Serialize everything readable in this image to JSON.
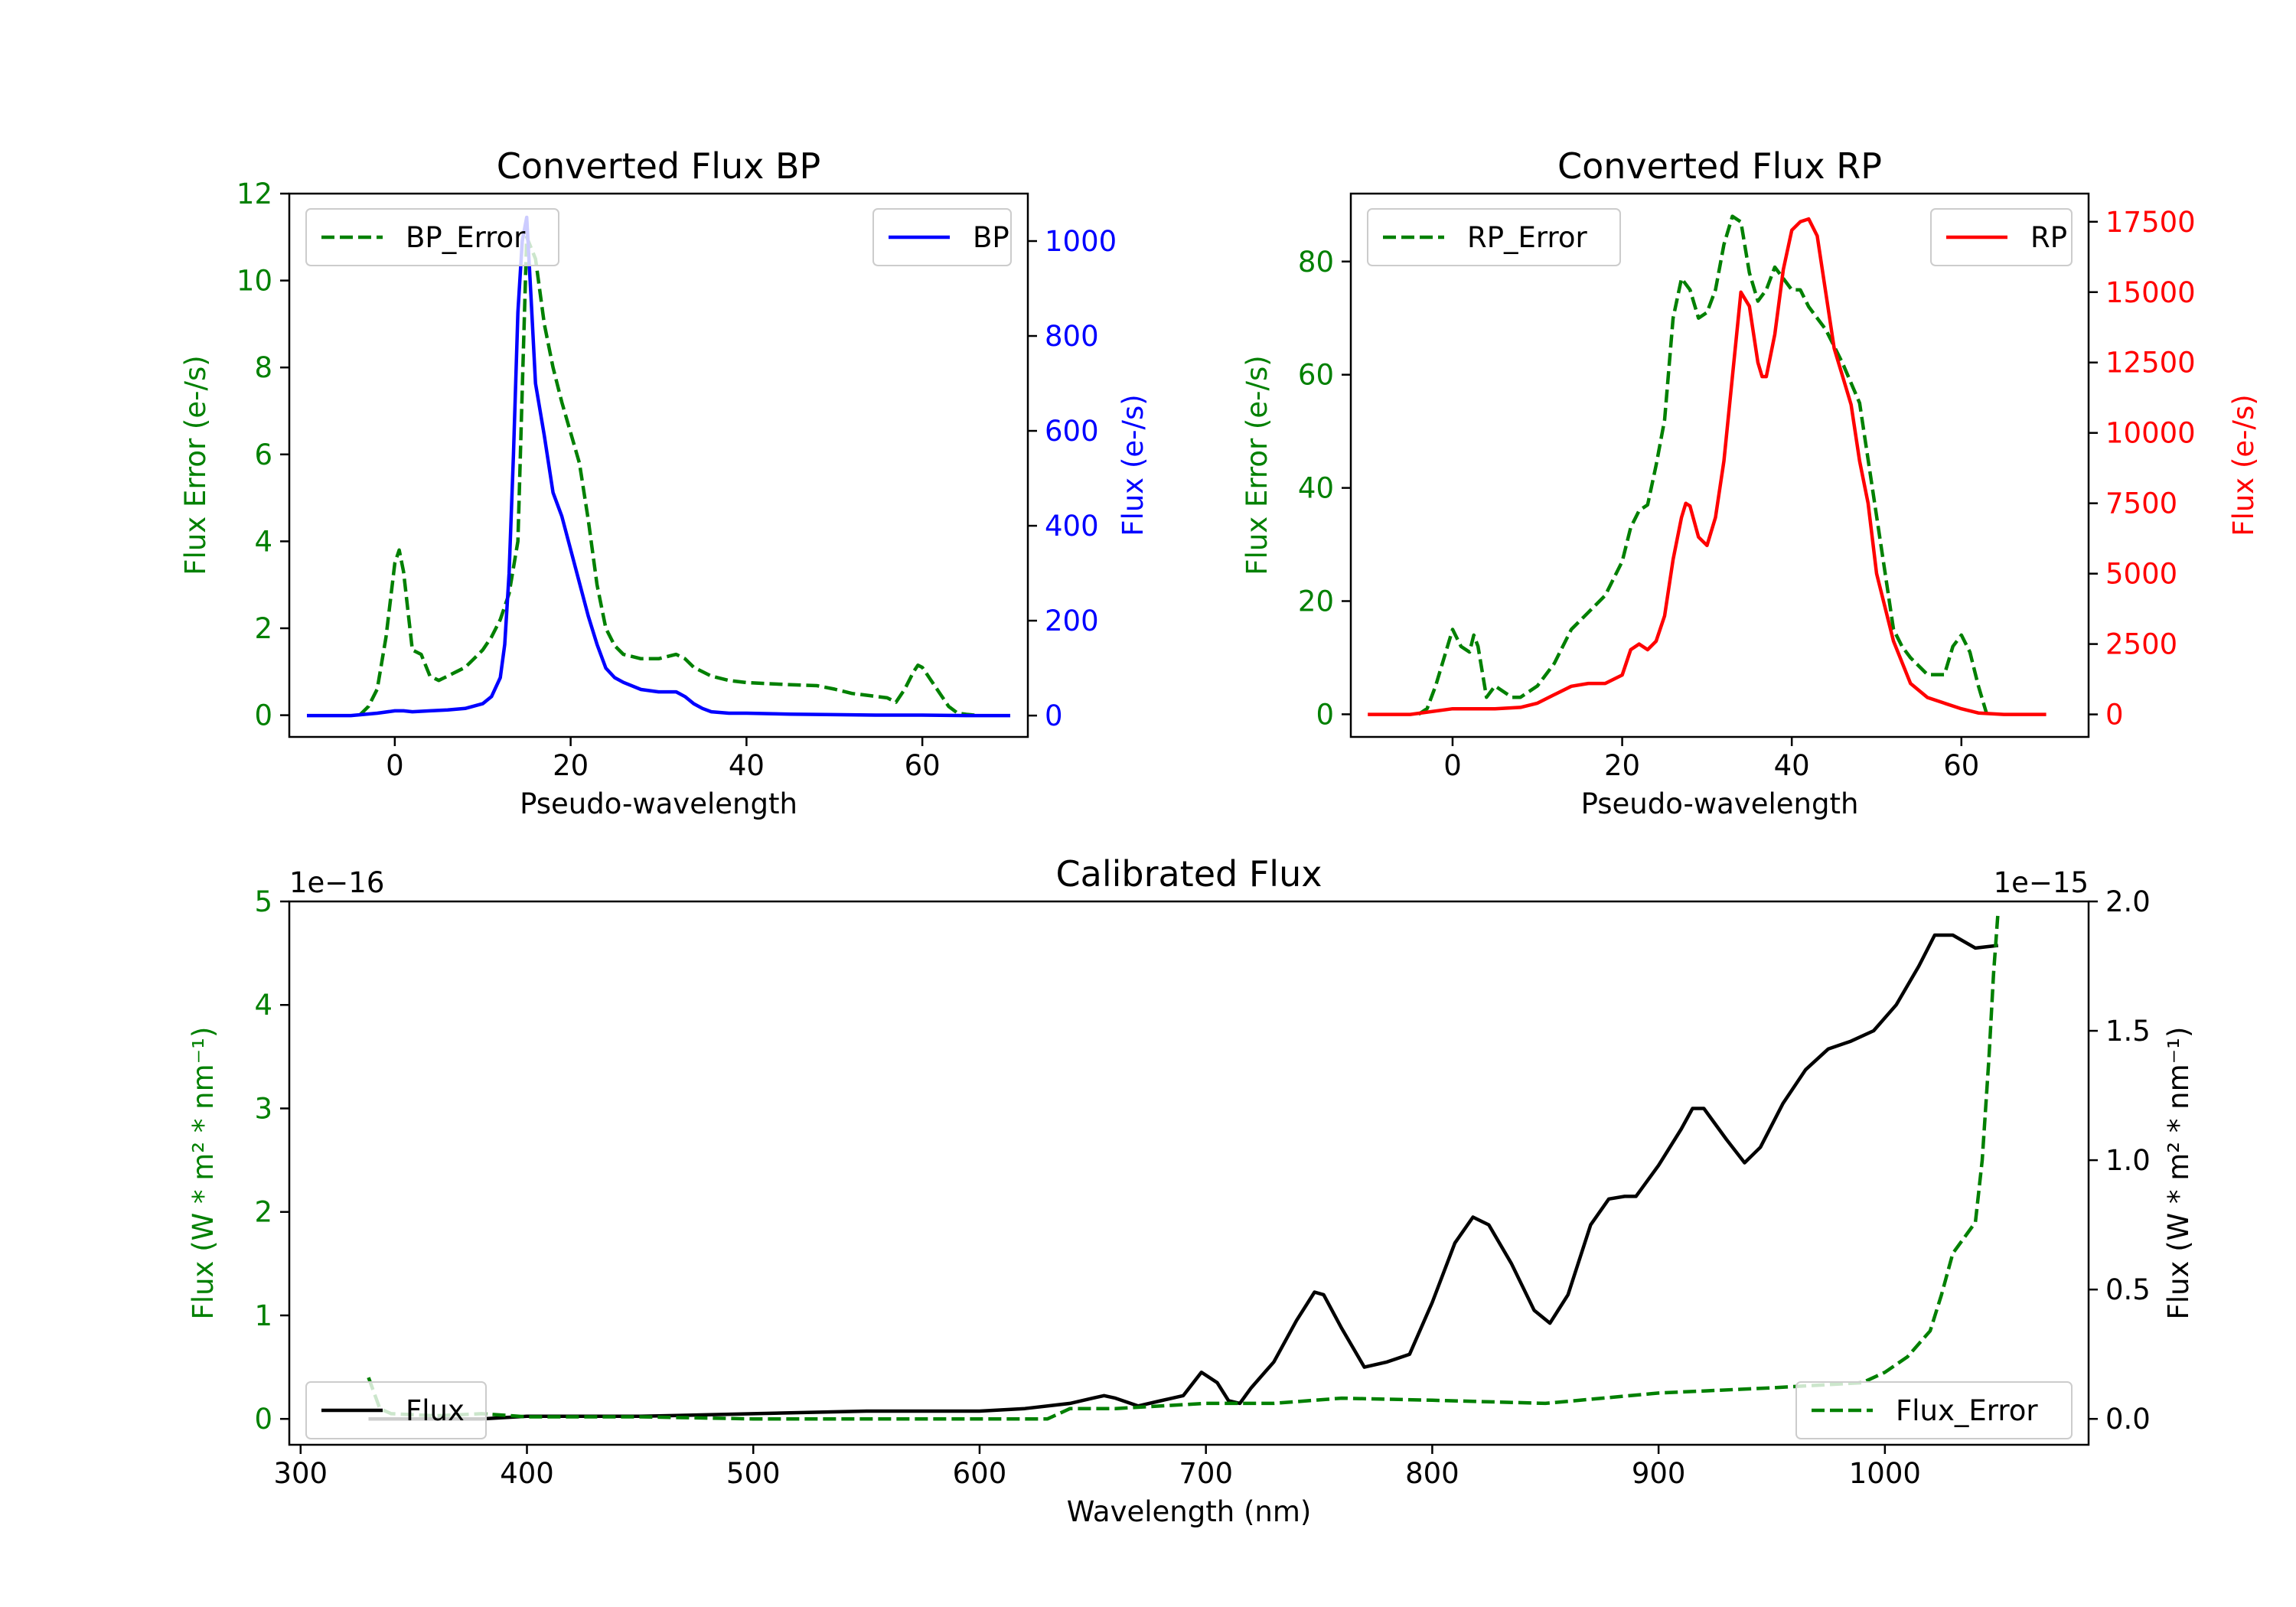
{
  "colors": {
    "bp": "#0000ff",
    "rp": "#ff0000",
    "error": "#008000",
    "flux": "#000000"
  },
  "chart_data": [
    {
      "type": "line",
      "title": "Converted Flux BP",
      "xlabel": "Pseudo-wavelength",
      "ylabel_left": "Flux Error (e-/s)",
      "ylabel_right": "Flux (e-/s)",
      "xlim": [
        -12,
        72
      ],
      "ylim_left": [
        -0.5,
        12
      ],
      "ylim_right": [
        -45,
        1100
      ],
      "xticks": [
        0,
        20,
        40,
        60
      ],
      "xtick_labels": [
        "0",
        "20",
        "40",
        "60"
      ],
      "yticks_left": [
        0,
        2,
        4,
        6,
        8,
        10,
        12
      ],
      "ytick_labels_left": [
        "0",
        "2",
        "4",
        "6",
        "8",
        "10",
        "12"
      ],
      "yticks_right": [
        0,
        200,
        400,
        600,
        800,
        1000
      ],
      "ytick_labels_right": [
        "0",
        "200",
        "400",
        "600",
        "800",
        "1000"
      ],
      "legend_left": "BP_Error",
      "legend_right": "BP",
      "series": [
        {
          "name": "BP_Error",
          "axis": "left",
          "style": "dashed",
          "color_key": "error",
          "x": [
            -4,
            -3,
            -2,
            -1,
            0,
            0.5,
            1,
            2,
            3,
            4,
            5,
            6,
            7,
            8,
            9,
            10,
            11,
            12,
            13,
            14,
            14.5,
            15,
            16,
            17,
            18,
            19,
            20,
            21,
            22,
            23,
            24,
            25,
            26,
            28,
            30,
            31,
            32,
            33,
            34,
            35,
            36,
            38,
            40,
            45,
            48,
            50,
            52,
            54,
            56,
            57,
            58,
            59,
            59.5,
            60,
            61,
            62,
            63,
            64,
            65,
            66
          ],
          "y": [
            0.0,
            0.2,
            0.6,
            1.8,
            3.5,
            3.8,
            3.3,
            1.5,
            1.4,
            0.9,
            0.8,
            0.9,
            1.0,
            1.1,
            1.3,
            1.5,
            1.8,
            2.2,
            2.8,
            4.0,
            7.5,
            11.0,
            10.5,
            9.0,
            8.0,
            7.2,
            6.5,
            5.8,
            4.5,
            3.0,
            2.0,
            1.6,
            1.4,
            1.3,
            1.3,
            1.35,
            1.4,
            1.3,
            1.1,
            1.0,
            0.9,
            0.8,
            0.75,
            0.7,
            0.68,
            0.6,
            0.5,
            0.45,
            0.4,
            0.3,
            0.6,
            1.0,
            1.15,
            1.1,
            0.8,
            0.5,
            0.2,
            0.05,
            0.02,
            0.0
          ]
        },
        {
          "name": "BP",
          "axis": "right",
          "style": "solid",
          "color_key": "bp",
          "x": [
            -10,
            -5,
            -2,
            0,
            1,
            2,
            4,
            6,
            8,
            10,
            11,
            12,
            12.5,
            13,
            13.5,
            14,
            14.5,
            15,
            15.5,
            16,
            17,
            18,
            19,
            20,
            21,
            22,
            23,
            24,
            25,
            26,
            28,
            30,
            32,
            33,
            34,
            35,
            36,
            38,
            40,
            45,
            50,
            55,
            60,
            65,
            70
          ],
          "y": [
            0,
            0,
            5,
            10,
            10,
            8,
            10,
            12,
            15,
            25,
            40,
            80,
            150,
            300,
            550,
            850,
            1000,
            1050,
            880,
            700,
            590,
            470,
            420,
            350,
            280,
            210,
            150,
            100,
            80,
            70,
            55,
            50,
            50,
            40,
            25,
            15,
            8,
            5,
            5,
            3,
            2,
            1,
            1,
            0,
            0
          ]
        }
      ]
    },
    {
      "type": "line",
      "title": "Converted Flux RP",
      "xlabel": "Pseudo-wavelength",
      "ylabel_left": "Flux Error (e-/s)",
      "ylabel_right": "Flux (e-/s)",
      "xlim": [
        -12,
        75
      ],
      "ylim_left": [
        -4,
        92
      ],
      "ylim_right": [
        -800,
        18500
      ],
      "xticks": [
        0,
        20,
        40,
        60
      ],
      "xtick_labels": [
        "0",
        "20",
        "40",
        "60"
      ],
      "yticks_left": [
        0,
        20,
        40,
        60,
        80
      ],
      "ytick_labels_left": [
        "0",
        "20",
        "40",
        "60",
        "80"
      ],
      "yticks_right": [
        0,
        2500,
        5000,
        7500,
        10000,
        12500,
        15000,
        17500
      ],
      "ytick_labels_right": [
        "0",
        "2500",
        "5000",
        "7500",
        "10000",
        "12500",
        "15000",
        "17500"
      ],
      "legend_left": "RP_Error",
      "legend_right": "RP",
      "series": [
        {
          "name": "RP_Error",
          "axis": "left",
          "style": "dashed",
          "color_key": "error",
          "x": [
            -4,
            -3,
            -2,
            -1,
            0,
            1,
            2,
            2.5,
            3,
            4,
            5,
            6,
            7,
            8,
            10,
            12,
            14,
            16,
            18,
            20,
            21,
            22,
            23,
            24,
            25,
            26,
            27,
            28,
            29,
            30,
            31,
            32,
            33,
            34,
            35,
            36,
            37,
            38,
            39,
            40,
            41,
            42,
            44,
            46,
            48,
            49,
            50,
            51,
            52,
            53,
            54,
            56,
            57,
            58,
            59,
            60,
            61,
            62,
            63
          ],
          "y": [
            0,
            1,
            5,
            10,
            15,
            12,
            11,
            14,
            12,
            3,
            5,
            4,
            3,
            3,
            5,
            9,
            15,
            18,
            21,
            27,
            33,
            36,
            37,
            44,
            52,
            70,
            77,
            75,
            70,
            71,
            75,
            83,
            88,
            87,
            78,
            73,
            75,
            79,
            77,
            75,
            75,
            72,
            68,
            62,
            55,
            45,
            35,
            25,
            15,
            12,
            10,
            7,
            7,
            7,
            12,
            14,
            11,
            5,
            0
          ]
        },
        {
          "name": "RP",
          "axis": "right",
          "style": "solid",
          "color_key": "rp",
          "x": [
            -10,
            -5,
            0,
            5,
            8,
            10,
            12,
            14,
            16,
            18,
            20,
            21,
            22,
            23,
            24,
            25,
            26,
            27,
            27.5,
            28,
            29,
            30,
            31,
            32,
            33,
            34,
            35,
            36,
            36.5,
            37,
            38,
            39,
            40,
            41,
            42,
            43,
            44,
            45,
            46,
            47,
            48,
            49,
            50,
            52,
            54,
            56,
            58,
            60,
            62,
            65,
            70
          ],
          "y": [
            0,
            0,
            200,
            200,
            250,
            400,
            700,
            1000,
            1100,
            1100,
            1400,
            2300,
            2500,
            2300,
            2600,
            3500,
            5500,
            7000,
            7500,
            7400,
            6300,
            6000,
            7000,
            9000,
            12000,
            15000,
            14500,
            12500,
            12000,
            12000,
            13500,
            15800,
            17200,
            17500,
            17600,
            17000,
            15000,
            13000,
            12000,
            11000,
            9000,
            7500,
            5000,
            2600,
            1100,
            600,
            400,
            200,
            50,
            0,
            0
          ]
        }
      ]
    },
    {
      "type": "line",
      "title": "Calibrated Flux",
      "xlabel": "Wavelength (nm)",
      "ylabel_left": "Flux (W * m² * nm⁻¹)",
      "ylabel_right": "Flux (W * m² * nm⁻¹)",
      "offset_left": "1e−16",
      "offset_right": "1e−15",
      "xlim": [
        295,
        1090
      ],
      "ylim_left": [
        -0.25,
        5.0
      ],
      "ylim_right": [
        -0.1,
        2.0
      ],
      "xticks": [
        300,
        400,
        500,
        600,
        700,
        800,
        900,
        1000
      ],
      "xtick_labels": [
        "300",
        "400",
        "500",
        "600",
        "700",
        "800",
        "900",
        "1000"
      ],
      "yticks_left": [
        0,
        1,
        2,
        3,
        4,
        5
      ],
      "ytick_labels_left": [
        "0",
        "1",
        "2",
        "3",
        "4",
        "5"
      ],
      "yticks_right": [
        0.0,
        0.5,
        1.0,
        1.5,
        2.0
      ],
      "ytick_labels_right": [
        "0.0",
        "0.5",
        "1.0",
        "1.5",
        "2.0"
      ],
      "legend_left": "Flux",
      "legend_right": "Flux_Error",
      "series": [
        {
          "name": "Flux",
          "axis": "right",
          "style": "solid",
          "color_key": "flux",
          "x": [
            330,
            340,
            360,
            380,
            400,
            450,
            500,
            550,
            600,
            620,
            640,
            650,
            655,
            660,
            670,
            680,
            690,
            698,
            705,
            710,
            715,
            720,
            730,
            740,
            748,
            752,
            760,
            770,
            780,
            790,
            800,
            810,
            818,
            825,
            835,
            845,
            852,
            860,
            870,
            878,
            885,
            890,
            900,
            910,
            915,
            920,
            930,
            938,
            945,
            955,
            965,
            975,
            985,
            995,
            1005,
            1015,
            1022,
            1030,
            1040,
            1050
          ],
          "y": [
            0.0,
            0.0,
            0.0,
            0.0,
            0.01,
            0.01,
            0.02,
            0.03,
            0.03,
            0.04,
            0.06,
            0.08,
            0.09,
            0.08,
            0.05,
            0.07,
            0.09,
            0.18,
            0.14,
            0.07,
            0.06,
            0.12,
            0.22,
            0.38,
            0.49,
            0.48,
            0.35,
            0.2,
            0.22,
            0.25,
            0.45,
            0.68,
            0.78,
            0.75,
            0.6,
            0.42,
            0.37,
            0.48,
            0.75,
            0.85,
            0.86,
            0.86,
            0.98,
            1.12,
            1.2,
            1.2,
            1.08,
            0.99,
            1.05,
            1.22,
            1.35,
            1.43,
            1.46,
            1.5,
            1.6,
            1.75,
            1.87,
            1.87,
            1.82,
            1.83
          ]
        },
        {
          "name": "Flux_Error",
          "axis": "left",
          "style": "dashed",
          "color_key": "error",
          "x": [
            330,
            335,
            340,
            360,
            380,
            400,
            450,
            500,
            550,
            600,
            620,
            630,
            640,
            660,
            700,
            730,
            760,
            800,
            850,
            900,
            950,
            990,
            1000,
            1010,
            1020,
            1025,
            1030,
            1035,
            1040,
            1043,
            1046,
            1048,
            1050
          ],
          "y": [
            0.4,
            0.1,
            0.05,
            0.03,
            0.05,
            0.02,
            0.02,
            0.0,
            0.0,
            0.0,
            0.0,
            0.0,
            0.1,
            0.1,
            0.15,
            0.15,
            0.2,
            0.18,
            0.15,
            0.25,
            0.3,
            0.35,
            0.45,
            0.6,
            0.85,
            1.2,
            1.6,
            1.75,
            1.9,
            2.5,
            3.5,
            4.3,
            4.9
          ]
        }
      ]
    }
  ]
}
